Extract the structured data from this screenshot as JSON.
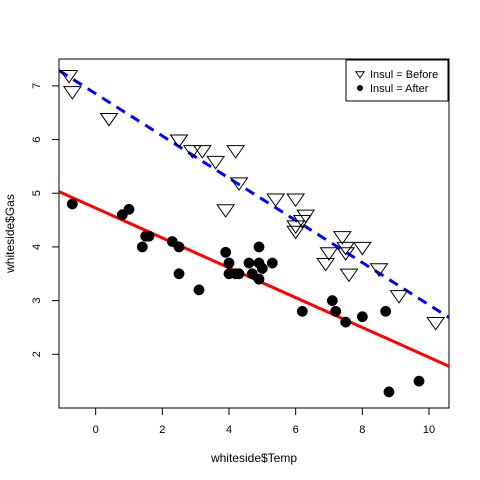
{
  "chart_data": {
    "type": "scatter",
    "xlabel": "whiteside$Temp",
    "ylabel": "whiteside$Gas",
    "xlim": [
      -1.1,
      10.6
    ],
    "ylim": [
      1.0,
      7.5
    ],
    "x_ticks": [
      0,
      2,
      4,
      6,
      8,
      10
    ],
    "y_ticks": [
      2,
      3,
      4,
      5,
      6,
      7
    ],
    "grid": false,
    "legend_position": "top-right",
    "series": [
      {
        "name": "Insul = Before",
        "marker": "open-triangle-down",
        "color": "#000000",
        "points": [
          [
            -0.8,
            7.2
          ],
          [
            -0.7,
            6.9
          ],
          [
            0.4,
            6.4
          ],
          [
            2.5,
            6.0
          ],
          [
            2.9,
            5.8
          ],
          [
            3.2,
            5.8
          ],
          [
            3.6,
            5.6
          ],
          [
            3.9,
            4.7
          ],
          [
            4.2,
            5.8
          ],
          [
            4.3,
            5.2
          ],
          [
            5.4,
            4.9
          ],
          [
            6.0,
            4.9
          ],
          [
            6.0,
            4.3
          ],
          [
            6.0,
            4.4
          ],
          [
            6.2,
            4.5
          ],
          [
            6.3,
            4.6
          ],
          [
            6.9,
            3.7
          ],
          [
            7.0,
            3.9
          ],
          [
            7.4,
            4.2
          ],
          [
            7.5,
            4.0
          ],
          [
            7.5,
            3.9
          ],
          [
            7.6,
            3.5
          ],
          [
            8.0,
            4.0
          ],
          [
            8.5,
            3.6
          ],
          [
            9.1,
            3.1
          ],
          [
            10.2,
            2.6
          ]
        ],
        "fit": {
          "intercept": 6.854,
          "slope": -0.3932,
          "color": "#0000ff",
          "style": "dashed"
        }
      },
      {
        "name": "Insul = After",
        "marker": "filled-circle",
        "color": "#000000",
        "points": [
          [
            -0.7,
            4.8
          ],
          [
            0.8,
            4.6
          ],
          [
            1.0,
            4.7
          ],
          [
            1.4,
            4.0
          ],
          [
            1.5,
            4.2
          ],
          [
            1.6,
            4.2
          ],
          [
            2.3,
            4.1
          ],
          [
            2.5,
            4.0
          ],
          [
            2.5,
            3.5
          ],
          [
            3.1,
            3.2
          ],
          [
            3.9,
            3.9
          ],
          [
            4.0,
            3.5
          ],
          [
            4.0,
            3.7
          ],
          [
            4.2,
            3.5
          ],
          [
            4.3,
            3.5
          ],
          [
            4.6,
            3.7
          ],
          [
            4.7,
            3.5
          ],
          [
            4.9,
            3.4
          ],
          [
            4.9,
            3.7
          ],
          [
            4.9,
            4.0
          ],
          [
            5.0,
            3.6
          ],
          [
            5.3,
            3.7
          ],
          [
            6.2,
            2.8
          ],
          [
            7.1,
            3.0
          ],
          [
            7.2,
            2.8
          ],
          [
            7.5,
            2.6
          ],
          [
            8.0,
            2.7
          ],
          [
            8.7,
            2.8
          ],
          [
            8.8,
            1.3
          ],
          [
            9.7,
            1.5
          ]
        ],
        "fit": {
          "intercept": 4.724,
          "slope": -0.2779,
          "color": "#ff0000",
          "style": "solid"
        }
      }
    ]
  }
}
